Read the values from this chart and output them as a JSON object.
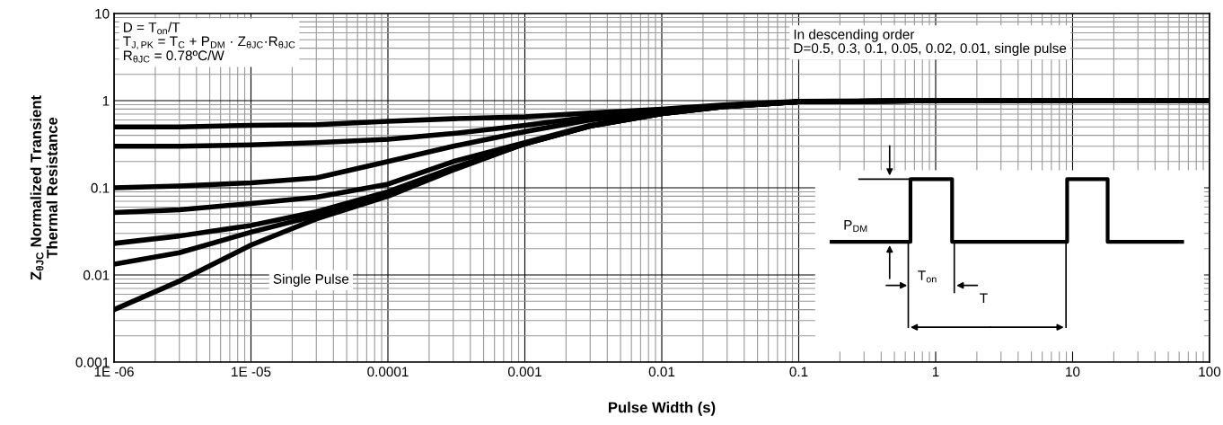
{
  "chart_data": {
    "type": "line",
    "log": "xy",
    "grid": true,
    "line_style": "solid",
    "marker": "none",
    "xlabel": "Pulse Width (s)",
    "ylabel": "Z$_{θJC}$ Normalized Transient\nThermal Resistance",
    "xlim": [
      1e-06,
      100
    ],
    "ylim": [
      0.001,
      10
    ],
    "xticks": [
      {
        "value": 1e-06,
        "label": "1E -06"
      },
      {
        "value": 1e-05,
        "label": "1E -05"
      },
      0.0001,
      0.001,
      0.01,
      0.1,
      1,
      10,
      100
    ],
    "yticks": [
      0.001,
      0.01,
      0.1,
      1,
      10
    ],
    "x": [
      1e-06,
      3e-06,
      1e-05,
      3e-05,
      0.0001,
      0.0003,
      0.001,
      0.003,
      0.01,
      0.03,
      0.1,
      1,
      10,
      100
    ],
    "series": [
      {
        "color": "#000000",
        "values": [
          0.5,
          0.5,
          0.52,
          0.53,
          0.58,
          0.62,
          0.65,
          0.72,
          0.8,
          0.9,
          0.98,
          1.0,
          1.0,
          1.0
        ]
      },
      {
        "color": "#000000",
        "values": [
          0.3,
          0.3,
          0.31,
          0.33,
          0.36,
          0.42,
          0.52,
          0.65,
          0.77,
          0.88,
          0.97,
          1.0,
          1.0,
          1.0
        ]
      },
      {
        "color": "#000000",
        "values": [
          0.1,
          0.105,
          0.114,
          0.13,
          0.2,
          0.3,
          0.44,
          0.6,
          0.75,
          0.87,
          0.97,
          1.0,
          1.0,
          1.0
        ]
      },
      {
        "color": "#000000",
        "values": [
          0.052,
          0.056,
          0.066,
          0.078,
          0.11,
          0.2,
          0.33,
          0.52,
          0.72,
          0.86,
          0.97,
          1.0,
          1.0,
          1.0
        ]
      },
      {
        "color": "#000000",
        "values": [
          0.023,
          0.028,
          0.037,
          0.053,
          0.09,
          0.17,
          0.32,
          0.51,
          0.71,
          0.86,
          0.97,
          1.0,
          1.0,
          1.0
        ]
      },
      {
        "color": "#000000",
        "values": [
          0.0133,
          0.018,
          0.031,
          0.048,
          0.085,
          0.165,
          0.32,
          0.51,
          0.71,
          0.86,
          0.97,
          1.0,
          1.0,
          1.0
        ]
      },
      {
        "color": "#000000",
        "values": [
          0.004,
          0.0085,
          0.022,
          0.044,
          0.08,
          0.16,
          0.32,
          0.51,
          0.71,
          0.86,
          0.97,
          1.0,
          1.0,
          1.0
        ]
      }
    ],
    "annotations": [
      "D = T$_{on}$/T\nT$_{J,PK}$ = T$_{C}$ + P$_{DM}$ · Z$_{θJC}$·R$_{θJC}$\nR$_{θJC}$ = 0.78ºC/W",
      "In descending order\nD=0.5, 0.3, 0.1, 0.05, 0.02, 0.01, single pulse",
      "Single Pulse",
      "P$_{DM}$",
      "T$_{on}$",
      "T"
    ]
  }
}
